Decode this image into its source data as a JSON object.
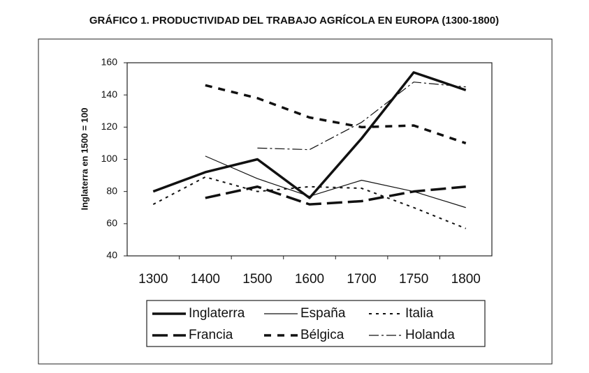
{
  "chart_data": {
    "type": "line",
    "title": "GRÁFICO 1. PRODUCTIVIDAD DEL TRABAJO AGRÍCOLA EN EUROPA (1300-1800)",
    "y_label": "Inglaterra en 1500 = 100",
    "categories": [
      "1300",
      "1400",
      "1500",
      "1600",
      "1700",
      "1750",
      "1800"
    ],
    "ylim": [
      40,
      160
    ],
    "yticks": [
      40,
      60,
      80,
      100,
      120,
      140,
      160
    ],
    "legend": "bottom",
    "series": [
      {
        "name": "Inglaterra",
        "color": "#111111",
        "style": "solid",
        "width": 3.5,
        "values": [
          80,
          92,
          100,
          76,
          113,
          154,
          143
        ]
      },
      {
        "name": "España",
        "color": "#111111",
        "style": "solid",
        "width": 1.2,
        "values": [
          null,
          102,
          88,
          77,
          87,
          80,
          70
        ]
      },
      {
        "name": "Italia",
        "color": "#111111",
        "style": "dotted",
        "width": 2,
        "values": [
          72,
          89,
          80,
          83,
          82,
          70,
          57
        ]
      },
      {
        "name": "Francia",
        "color": "#111111",
        "style": "longdash",
        "width": 3.5,
        "values": [
          null,
          76,
          83,
          72,
          74,
          80,
          83
        ]
      },
      {
        "name": "Bélgica",
        "color": "#111111",
        "style": "dashed",
        "width": 3.5,
        "values": [
          null,
          146,
          138,
          126,
          120,
          121,
          110
        ]
      },
      {
        "name": "Holanda",
        "color": "#111111",
        "style": "dashdot",
        "width": 1.2,
        "values": [
          null,
          null,
          107,
          106,
          123,
          148,
          145
        ]
      }
    ]
  }
}
